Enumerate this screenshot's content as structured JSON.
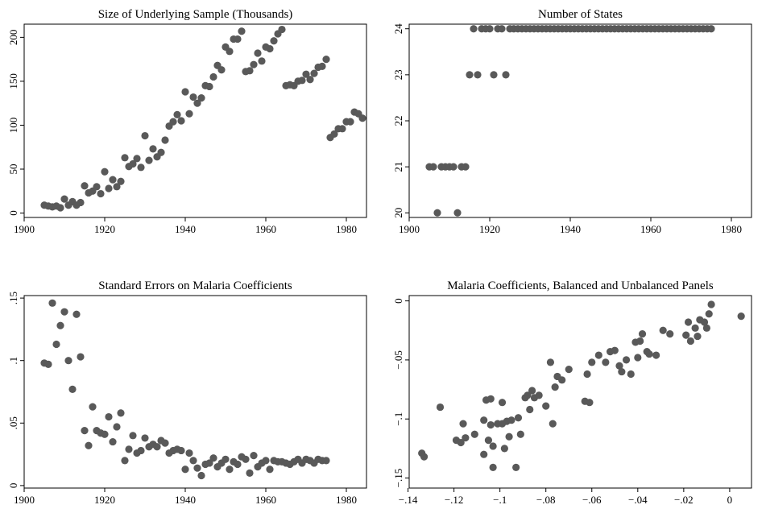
{
  "chart_data": [
    {
      "type": "scatter",
      "title": "Size of Underlying Sample (Thousands)",
      "xlabel": "",
      "ylabel": "",
      "xlim": [
        1900,
        1985
      ],
      "ylim": [
        -5,
        215
      ],
      "xticks": [
        1900,
        1920,
        1940,
        1960,
        1980
      ],
      "yticks": [
        0,
        50,
        100,
        150,
        200
      ],
      "ytick_labels": [
        "0",
        "50",
        "100",
        "150",
        "200"
      ],
      "grid": false,
      "marker_color": "#595959",
      "points": [
        [
          1905,
          9
        ],
        [
          1906,
          8
        ],
        [
          1907,
          7
        ],
        [
          1908,
          8
        ],
        [
          1909,
          6
        ],
        [
          1910,
          16
        ],
        [
          1911,
          9
        ],
        [
          1912,
          13
        ],
        [
          1913,
          9
        ],
        [
          1914,
          12
        ],
        [
          1915,
          31
        ],
        [
          1916,
          23
        ],
        [
          1917,
          25
        ],
        [
          1918,
          30
        ],
        [
          1919,
          22
        ],
        [
          1920,
          47
        ],
        [
          1921,
          28
        ],
        [
          1922,
          38
        ],
        [
          1923,
          30
        ],
        [
          1924,
          36
        ],
        [
          1925,
          63
        ],
        [
          1926,
          53
        ],
        [
          1927,
          56
        ],
        [
          1928,
          62
        ],
        [
          1929,
          52
        ],
        [
          1930,
          88
        ],
        [
          1931,
          60
        ],
        [
          1932,
          73
        ],
        [
          1933,
          64
        ],
        [
          1934,
          69
        ],
        [
          1935,
          83
        ],
        [
          1936,
          99
        ],
        [
          1937,
          104
        ],
        [
          1938,
          112
        ],
        [
          1939,
          105
        ],
        [
          1940,
          138
        ],
        [
          1941,
          113
        ],
        [
          1942,
          132
        ],
        [
          1943,
          125
        ],
        [
          1944,
          131
        ],
        [
          1945,
          145
        ],
        [
          1946,
          144
        ],
        [
          1947,
          155
        ],
        [
          1948,
          168
        ],
        [
          1949,
          163
        ],
        [
          1950,
          189
        ],
        [
          1951,
          184
        ],
        [
          1952,
          198
        ],
        [
          1953,
          198
        ],
        [
          1954,
          207
        ],
        [
          1955,
          161
        ],
        [
          1956,
          162
        ],
        [
          1957,
          169
        ],
        [
          1958,
          182
        ],
        [
          1959,
          173
        ],
        [
          1960,
          189
        ],
        [
          1961,
          187
        ],
        [
          1962,
          196
        ],
        [
          1963,
          204
        ],
        [
          1964,
          209
        ],
        [
          1965,
          145
        ],
        [
          1966,
          146
        ],
        [
          1967,
          145
        ],
        [
          1968,
          150
        ],
        [
          1969,
          151
        ],
        [
          1970,
          158
        ],
        [
          1971,
          152
        ],
        [
          1972,
          159
        ],
        [
          1973,
          166
        ],
        [
          1974,
          167
        ],
        [
          1975,
          175
        ],
        [
          1976,
          86
        ],
        [
          1977,
          90
        ],
        [
          1978,
          96
        ],
        [
          1979,
          96
        ],
        [
          1980,
          104
        ],
        [
          1981,
          104
        ],
        [
          1982,
          115
        ],
        [
          1983,
          113
        ],
        [
          1984,
          108
        ]
      ]
    },
    {
      "type": "scatter",
      "title": "Number of States",
      "xlabel": "",
      "ylabel": "",
      "xlim": [
        1900,
        1985
      ],
      "ylim": [
        19.9,
        24.1
      ],
      "xticks": [
        1900,
        1920,
        1940,
        1960,
        1980
      ],
      "yticks": [
        20,
        21,
        22,
        23,
        24
      ],
      "ytick_labels": [
        "20",
        "21",
        "22",
        "23",
        "24"
      ],
      "grid": false,
      "marker_color": "#595959",
      "points": [
        [
          1905,
          21
        ],
        [
          1906,
          21
        ],
        [
          1907,
          20
        ],
        [
          1908,
          21
        ],
        [
          1909,
          21
        ],
        [
          1910,
          21
        ],
        [
          1911,
          21
        ],
        [
          1912,
          20
        ],
        [
          1913,
          21
        ],
        [
          1914,
          21
        ],
        [
          1915,
          23
        ],
        [
          1916,
          24
        ],
        [
          1917,
          23
        ],
        [
          1918,
          24
        ],
        [
          1919,
          24
        ],
        [
          1920,
          24
        ],
        [
          1921,
          23
        ],
        [
          1922,
          24
        ],
        [
          1923,
          24
        ],
        [
          1924,
          23
        ],
        [
          1925,
          24
        ],
        [
          1926,
          24
        ],
        [
          1927,
          24
        ],
        [
          1928,
          24
        ],
        [
          1929,
          24
        ],
        [
          1930,
          24
        ],
        [
          1931,
          24
        ],
        [
          1932,
          24
        ],
        [
          1933,
          24
        ],
        [
          1934,
          24
        ],
        [
          1935,
          24
        ],
        [
          1936,
          24
        ],
        [
          1937,
          24
        ],
        [
          1938,
          24
        ],
        [
          1939,
          24
        ],
        [
          1940,
          24
        ],
        [
          1941,
          24
        ],
        [
          1942,
          24
        ],
        [
          1943,
          24
        ],
        [
          1944,
          24
        ],
        [
          1945,
          24
        ],
        [
          1946,
          24
        ],
        [
          1947,
          24
        ],
        [
          1948,
          24
        ],
        [
          1949,
          24
        ],
        [
          1950,
          24
        ],
        [
          1951,
          24
        ],
        [
          1952,
          24
        ],
        [
          1953,
          24
        ],
        [
          1954,
          24
        ],
        [
          1955,
          24
        ],
        [
          1956,
          24
        ],
        [
          1957,
          24
        ],
        [
          1958,
          24
        ],
        [
          1959,
          24
        ],
        [
          1960,
          24
        ],
        [
          1961,
          24
        ],
        [
          1962,
          24
        ],
        [
          1963,
          24
        ],
        [
          1964,
          24
        ],
        [
          1965,
          24
        ],
        [
          1966,
          24
        ],
        [
          1967,
          24
        ],
        [
          1968,
          24
        ],
        [
          1969,
          24
        ],
        [
          1970,
          24
        ],
        [
          1971,
          24
        ],
        [
          1972,
          24
        ],
        [
          1973,
          24
        ],
        [
          1974,
          24
        ],
        [
          1975,
          24
        ]
      ]
    },
    {
      "type": "scatter",
      "title": "Standard Errors on Malaria Coefficients",
      "xlabel": "",
      "ylabel": "",
      "xlim": [
        1900,
        1985
      ],
      "ylim": [
        -0.002,
        0.152
      ],
      "xticks": [
        1900,
        1920,
        1940,
        1960,
        1980
      ],
      "yticks": [
        0,
        0.05,
        0.1,
        0.15
      ],
      "ytick_labels": [
        "0",
        ".05",
        ".1",
        ".15"
      ],
      "grid": false,
      "marker_color": "#595959",
      "points": [
        [
          1905,
          0.098
        ],
        [
          1906,
          0.097
        ],
        [
          1907,
          0.146
        ],
        [
          1908,
          0.113
        ],
        [
          1909,
          0.128
        ],
        [
          1910,
          0.139
        ],
        [
          1911,
          0.1
        ],
        [
          1912,
          0.077
        ],
        [
          1913,
          0.137
        ],
        [
          1914,
          0.103
        ],
        [
          1915,
          0.044
        ],
        [
          1916,
          0.032
        ],
        [
          1917,
          0.063
        ],
        [
          1918,
          0.044
        ],
        [
          1919,
          0.042
        ],
        [
          1920,
          0.041
        ],
        [
          1921,
          0.055
        ],
        [
          1922,
          0.035
        ],
        [
          1923,
          0.047
        ],
        [
          1924,
          0.058
        ],
        [
          1925,
          0.02
        ],
        [
          1926,
          0.029
        ],
        [
          1927,
          0.04
        ],
        [
          1928,
          0.026
        ],
        [
          1929,
          0.028
        ],
        [
          1930,
          0.038
        ],
        [
          1931,
          0.031
        ],
        [
          1932,
          0.033
        ],
        [
          1933,
          0.031
        ],
        [
          1934,
          0.036
        ],
        [
          1935,
          0.034
        ],
        [
          1936,
          0.026
        ],
        [
          1937,
          0.028
        ],
        [
          1938,
          0.029
        ],
        [
          1939,
          0.028
        ],
        [
          1940,
          0.013
        ],
        [
          1941,
          0.026
        ],
        [
          1942,
          0.02
        ],
        [
          1943,
          0.014
        ],
        [
          1944,
          0.008
        ],
        [
          1945,
          0.017
        ],
        [
          1946,
          0.018
        ],
        [
          1947,
          0.022
        ],
        [
          1948,
          0.015
        ],
        [
          1949,
          0.018
        ],
        [
          1950,
          0.021
        ],
        [
          1951,
          0.013
        ],
        [
          1952,
          0.019
        ],
        [
          1953,
          0.017
        ],
        [
          1954,
          0.023
        ],
        [
          1955,
          0.021
        ],
        [
          1956,
          0.01
        ],
        [
          1957,
          0.024
        ],
        [
          1958,
          0.015
        ],
        [
          1959,
          0.018
        ],
        [
          1960,
          0.02
        ],
        [
          1961,
          0.013
        ],
        [
          1962,
          0.02
        ],
        [
          1963,
          0.019
        ],
        [
          1964,
          0.019
        ],
        [
          1965,
          0.018
        ],
        [
          1966,
          0.017
        ],
        [
          1967,
          0.019
        ],
        [
          1968,
          0.021
        ],
        [
          1969,
          0.018
        ],
        [
          1970,
          0.021
        ],
        [
          1971,
          0.02
        ],
        [
          1972,
          0.018
        ],
        [
          1973,
          0.021
        ],
        [
          1974,
          0.02
        ],
        [
          1975,
          0.02
        ]
      ]
    },
    {
      "type": "scatter",
      "title": "Malaria Coefficients, Balanced and Unbalanced Panels",
      "xlabel": "",
      "ylabel": "",
      "xlim": [
        -0.1395,
        0.0095
      ],
      "ylim": [
        -0.1585,
        0.0045
      ],
      "xticks": [
        -0.14,
        -0.12,
        -0.1,
        -0.08,
        -0.06,
        -0.04,
        -0.02,
        0
      ],
      "xtick_labels": [
        "−.14",
        "−.12",
        "−.1",
        "−.08",
        "−.06",
        "−.04",
        "−.02",
        "0"
      ],
      "yticks": [
        0,
        -0.05,
        -0.1,
        -0.15
      ],
      "ytick_labels": [
        "0",
        "−.05",
        "−.1",
        "−.15"
      ],
      "grid": false,
      "marker_color": "#595959",
      "points": [
        [
          -0.134,
          -0.129
        ],
        [
          -0.133,
          -0.132
        ],
        [
          -0.126,
          -0.09
        ],
        [
          -0.119,
          -0.118
        ],
        [
          -0.117,
          -0.12
        ],
        [
          -0.116,
          -0.104
        ],
        [
          -0.115,
          -0.116
        ],
        [
          -0.111,
          -0.113
        ],
        [
          -0.107,
          -0.101
        ],
        [
          -0.107,
          -0.13
        ],
        [
          -0.106,
          -0.084
        ],
        [
          -0.105,
          -0.118
        ],
        [
          -0.104,
          -0.083
        ],
        [
          -0.104,
          -0.105
        ],
        [
          -0.103,
          -0.123
        ],
        [
          -0.103,
          -0.141
        ],
        [
          -0.101,
          -0.104
        ],
        [
          -0.099,
          -0.104
        ],
        [
          -0.099,
          -0.086
        ],
        [
          -0.098,
          -0.125
        ],
        [
          -0.097,
          -0.102
        ],
        [
          -0.096,
          -0.115
        ],
        [
          -0.095,
          -0.101
        ],
        [
          -0.093,
          -0.141
        ],
        [
          -0.092,
          -0.099
        ],
        [
          -0.091,
          -0.113
        ],
        [
          -0.089,
          -0.082
        ],
        [
          -0.088,
          -0.08
        ],
        [
          -0.087,
          -0.092
        ],
        [
          -0.086,
          -0.076
        ],
        [
          -0.085,
          -0.082
        ],
        [
          -0.083,
          -0.08
        ],
        [
          -0.08,
          -0.089
        ],
        [
          -0.078,
          -0.052
        ],
        [
          -0.077,
          -0.104
        ],
        [
          -0.076,
          -0.073
        ],
        [
          -0.075,
          -0.064
        ],
        [
          -0.073,
          -0.067
        ],
        [
          -0.07,
          -0.058
        ],
        [
          -0.063,
          -0.085
        ],
        [
          -0.062,
          -0.062
        ],
        [
          -0.061,
          -0.086
        ],
        [
          -0.06,
          -0.052
        ],
        [
          -0.057,
          -0.046
        ],
        [
          -0.054,
          -0.052
        ],
        [
          -0.052,
          -0.043
        ],
        [
          -0.05,
          -0.042
        ],
        [
          -0.048,
          -0.055
        ],
        [
          -0.047,
          -0.06
        ],
        [
          -0.045,
          -0.05
        ],
        [
          -0.043,
          -0.062
        ],
        [
          -0.041,
          -0.035
        ],
        [
          -0.04,
          -0.048
        ],
        [
          -0.039,
          -0.034
        ],
        [
          -0.038,
          -0.028
        ],
        [
          -0.036,
          -0.043
        ],
        [
          -0.035,
          -0.045
        ],
        [
          -0.032,
          -0.046
        ],
        [
          -0.029,
          -0.025
        ],
        [
          -0.026,
          -0.028
        ],
        [
          -0.019,
          -0.029
        ],
        [
          -0.018,
          -0.018
        ],
        [
          -0.017,
          -0.034
        ],
        [
          -0.015,
          -0.023
        ],
        [
          -0.014,
          -0.03
        ],
        [
          -0.013,
          -0.016
        ],
        [
          -0.011,
          -0.018
        ],
        [
          -0.01,
          -0.023
        ],
        [
          -0.009,
          -0.011
        ],
        [
          -0.008,
          -0.003
        ],
        [
          0.005,
          -0.013
        ]
      ]
    }
  ]
}
